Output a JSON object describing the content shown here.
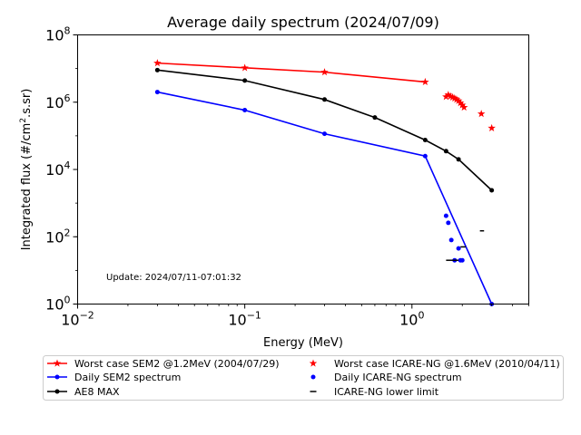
{
  "chart_data": {
    "type": "line",
    "title": "Average daily spectrum (2024/07/09)",
    "xlabel": "Energy (MeV)",
    "ylabel_main": "Integrated flux (#/cm",
    "ylabel_sup": "2",
    "ylabel_tail": ".s.sr)",
    "xscale": "log",
    "yscale": "log",
    "xlim": [
      0.01,
      5
    ],
    "ylim": [
      1,
      100000000
    ],
    "x_ticks": [
      {
        "value": 0.01,
        "base": "10",
        "exp": "−2"
      },
      {
        "value": 0.1,
        "base": "10",
        "exp": "−1"
      },
      {
        "value": 1,
        "base": "10",
        "exp": "0"
      }
    ],
    "y_ticks": [
      {
        "value": 1,
        "base": "10",
        "exp": "0"
      },
      {
        "value": 100,
        "base": "10",
        "exp": "2"
      },
      {
        "value": 10000,
        "base": "10",
        "exp": "4"
      },
      {
        "value": 1000000,
        "base": "10",
        "exp": "6"
      },
      {
        "value": 100000000,
        "base": "10",
        "exp": "8"
      }
    ],
    "annotation": "Update: 2024/07/11-07:01:32",
    "series": [
      {
        "name": "Worst case SEM2 @1.2MeV (2004/07/29)",
        "color": "#ff0000",
        "style": "line",
        "marker": "star",
        "x": [
          0.03,
          0.1,
          0.3,
          1.2
        ],
        "y": [
          14500000,
          10500000,
          7800000,
          4000000
        ]
      },
      {
        "name": "Worst case ICARE-NG @1.6MeV (2010/04/11)",
        "color": "#ff0000",
        "style": "markers",
        "marker": "star",
        "x": [
          1.6,
          1.65,
          1.7,
          1.75,
          1.8,
          1.85,
          1.9,
          1.95,
          2.0,
          2.05,
          2.6,
          3.0
        ],
        "y": [
          1450000,
          1650000,
          1500000,
          1400000,
          1300000,
          1200000,
          1100000,
          950000,
          820000,
          700000,
          450000,
          170000
        ]
      },
      {
        "name": "Daily SEM2 spectrum",
        "color": "#0000ff",
        "style": "line",
        "marker": "dot",
        "x": [
          0.03,
          0.1,
          0.3,
          1.2,
          3.0
        ],
        "y": [
          2000000,
          580000,
          115000,
          25000,
          1
        ]
      },
      {
        "name": "Daily ICARE-NG spectrum",
        "color": "#0000ff",
        "style": "markers",
        "marker": "dot",
        "x": [
          1.6,
          1.65,
          1.72,
          1.9,
          1.8,
          1.95,
          2.0
        ],
        "y": [
          420,
          260,
          80,
          45,
          20,
          20,
          20
        ]
      },
      {
        "name": "AE8 MAX",
        "color": "#000000",
        "style": "line",
        "marker": "dot",
        "x": [
          0.03,
          0.1,
          0.3,
          0.6,
          1.2,
          1.6,
          1.9,
          3.0
        ],
        "y": [
          9000000,
          4400000,
          1200000,
          350000,
          75000,
          35000,
          20000,
          2400
        ]
      },
      {
        "name": "ICARE-NG lower limit",
        "color": "#000000",
        "style": "hsegments",
        "marker": "dash",
        "segments": [
          {
            "x1": 1.6,
            "x2": 1.9,
            "y": 20
          },
          {
            "x1": 1.95,
            "x2": 2.1,
            "y": 50
          },
          {
            "x1": 2.55,
            "x2": 2.7,
            "y": 150
          }
        ]
      }
    ],
    "legend": {
      "placement": "bottom",
      "entries": [
        {
          "series": 0,
          "label": "Worst case SEM2 @1.2MeV (2004/07/29)"
        },
        {
          "series": 2,
          "label": "Daily SEM2 spectrum"
        },
        {
          "series": 4,
          "label": "AE8 MAX"
        },
        {
          "series": 1,
          "label": "Worst case ICARE-NG @1.6MeV (2010/04/11)"
        },
        {
          "series": 3,
          "label": "Daily ICARE-NG spectrum"
        },
        {
          "series": 5,
          "label": "ICARE-NG lower limit"
        }
      ]
    }
  }
}
